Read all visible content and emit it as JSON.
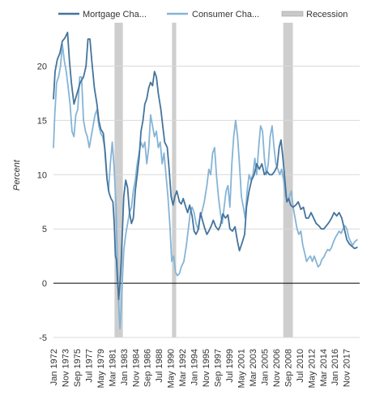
{
  "chart_data": {
    "type": "line",
    "ylabel": "Percent",
    "ylim": [
      -5,
      24
    ],
    "yticks": [
      -5,
      0,
      5,
      10,
      15,
      20
    ],
    "xlim": [
      1972.0,
      2019.9
    ],
    "xticks": [
      "Jan 1972",
      "Nov 1973",
      "Sep 1975",
      "Jul 1977",
      "May 1979",
      "Mar 1981",
      "Jan 1983",
      "Nov 1984",
      "Sep 1986",
      "Jul 1988",
      "May 1990",
      "Mar 1992",
      "Jan 1994",
      "Nov 1995",
      "Sep 1997",
      "Jul 1999",
      "May 2001",
      "Mar 2003",
      "Jan 2005",
      "Nov 2006",
      "Sep 2008",
      "Jul 2010",
      "May 2012",
      "Mar 2014",
      "Jan 2016",
      "Nov 2017"
    ],
    "grid": true,
    "legend": "top",
    "legend_items": [
      "Mortgage Cha...",
      "Consumer Cha...",
      "Recession"
    ],
    "recessions": [
      {
        "start": 1981.55,
        "end": 1982.85
      },
      {
        "start": 1990.55,
        "end": 1991.2
      },
      {
        "start": 2007.95,
        "end": 2009.45
      }
    ],
    "series": [
      {
        "name": "Mortgage Cha...",
        "color": "#44749d",
        "points": [
          [
            1972.0,
            17.0
          ],
          [
            1972.25,
            19.5
          ],
          [
            1972.6,
            20.6
          ],
          [
            1973.0,
            21.2
          ],
          [
            1973.4,
            22.3
          ],
          [
            1973.8,
            22.6
          ],
          [
            1974.2,
            23.1
          ],
          [
            1974.5,
            20.5
          ],
          [
            1974.8,
            18.5
          ],
          [
            1975.2,
            16.5
          ],
          [
            1975.7,
            17.5
          ],
          [
            1976.2,
            18.5
          ],
          [
            1976.7,
            19.0
          ],
          [
            1977.1,
            20.0
          ],
          [
            1977.4,
            22.5
          ],
          [
            1977.7,
            22.5
          ],
          [
            1978.0,
            20.5
          ],
          [
            1978.4,
            18.0
          ],
          [
            1978.8,
            16.5
          ],
          [
            1979.1,
            15.0
          ],
          [
            1979.4,
            14.2
          ],
          [
            1979.8,
            13.8
          ],
          [
            1980.1,
            12.0
          ],
          [
            1980.4,
            9.5
          ],
          [
            1980.7,
            8.3
          ],
          [
            1981.0,
            7.8
          ],
          [
            1981.3,
            7.5
          ],
          [
            1981.5,
            5.5
          ],
          [
            1981.7,
            2.5
          ],
          [
            1981.85,
            2.2
          ],
          [
            1982.05,
            0.0
          ],
          [
            1982.2,
            -1.5
          ],
          [
            1982.4,
            0.0
          ],
          [
            1982.6,
            2.0
          ],
          [
            1982.8,
            5.0
          ],
          [
            1983.0,
            8.0
          ],
          [
            1983.3,
            9.5
          ],
          [
            1983.6,
            8.8
          ],
          [
            1983.9,
            6.5
          ],
          [
            1984.2,
            5.5
          ],
          [
            1984.5,
            6.0
          ],
          [
            1984.8,
            8.5
          ],
          [
            1985.1,
            10.0
          ],
          [
            1985.4,
            11.5
          ],
          [
            1985.7,
            14.0
          ],
          [
            1986.0,
            15.0
          ],
          [
            1986.3,
            16.5
          ],
          [
            1986.6,
            17.0
          ],
          [
            1986.9,
            18.0
          ],
          [
            1987.2,
            18.5
          ],
          [
            1987.5,
            18.2
          ],
          [
            1987.8,
            19.5
          ],
          [
            1988.1,
            19.0
          ],
          [
            1988.4,
            17.5
          ],
          [
            1988.8,
            16.0
          ],
          [
            1989.1,
            14.5
          ],
          [
            1989.4,
            13.0
          ],
          [
            1989.8,
            12.5
          ],
          [
            1990.1,
            10.5
          ],
          [
            1990.4,
            8.0
          ],
          [
            1990.7,
            7.2
          ],
          [
            1991.0,
            8.0
          ],
          [
            1991.3,
            8.5
          ],
          [
            1991.7,
            7.5
          ],
          [
            1992.0,
            7.3
          ],
          [
            1992.3,
            7.8
          ],
          [
            1992.7,
            7.0
          ],
          [
            1993.0,
            6.5
          ],
          [
            1993.3,
            7.2
          ],
          [
            1993.7,
            6.2
          ],
          [
            1994.0,
            4.8
          ],
          [
            1994.3,
            4.5
          ],
          [
            1994.7,
            5.0
          ],
          [
            1995.0,
            6.5
          ],
          [
            1995.3,
            5.8
          ],
          [
            1995.7,
            5.0
          ],
          [
            1996.0,
            4.5
          ],
          [
            1996.3,
            4.8
          ],
          [
            1996.7,
            5.3
          ],
          [
            1997.0,
            5.8
          ],
          [
            1997.4,
            5.2
          ],
          [
            1997.8,
            4.9
          ],
          [
            1998.1,
            5.3
          ],
          [
            1998.5,
            6.4
          ],
          [
            1998.9,
            6.0
          ],
          [
            1999.3,
            6.3
          ],
          [
            1999.6,
            5.0
          ],
          [
            2000.0,
            4.8
          ],
          [
            2000.4,
            5.2
          ],
          [
            2000.8,
            3.8
          ],
          [
            2001.1,
            3.0
          ],
          [
            2001.5,
            3.7
          ],
          [
            2001.9,
            4.5
          ],
          [
            2002.2,
            7.0
          ],
          [
            2002.6,
            8.5
          ],
          [
            2003.0,
            9.5
          ],
          [
            2003.4,
            10.0
          ],
          [
            2003.8,
            11.0
          ],
          [
            2004.2,
            10.5
          ],
          [
            2004.6,
            11.0
          ],
          [
            2005.0,
            10.0
          ],
          [
            2005.4,
            10.3
          ],
          [
            2005.8,
            10.0
          ],
          [
            2006.2,
            10.0
          ],
          [
            2006.6,
            10.3
          ],
          [
            2007.0,
            10.8
          ],
          [
            2007.3,
            12.5
          ],
          [
            2007.6,
            13.2
          ],
          [
            2007.9,
            11.5
          ],
          [
            2008.2,
            9.5
          ],
          [
            2008.5,
            7.5
          ],
          [
            2008.8,
            7.8
          ],
          [
            2009.1,
            7.2
          ],
          [
            2009.5,
            7.0
          ],
          [
            2009.9,
            7.2
          ],
          [
            2010.3,
            7.5
          ],
          [
            2010.7,
            6.8
          ],
          [
            2011.1,
            7.0
          ],
          [
            2011.5,
            6.0
          ],
          [
            2011.9,
            6.0
          ],
          [
            2012.3,
            6.5
          ],
          [
            2012.7,
            6.0
          ],
          [
            2013.1,
            5.5
          ],
          [
            2013.5,
            5.3
          ],
          [
            2013.9,
            5.0
          ],
          [
            2014.3,
            5.0
          ],
          [
            2014.7,
            5.3
          ],
          [
            2015.1,
            5.6
          ],
          [
            2015.5,
            6.0
          ],
          [
            2015.9,
            6.5
          ],
          [
            2016.3,
            6.2
          ],
          [
            2016.7,
            6.5
          ],
          [
            2017.1,
            6.0
          ],
          [
            2017.5,
            5.0
          ],
          [
            2017.9,
            4.0
          ],
          [
            2018.3,
            3.6
          ],
          [
            2018.7,
            3.4
          ],
          [
            2019.1,
            3.2
          ],
          [
            2019.5,
            3.3
          ]
        ]
      },
      {
        "name": "Consumer Cha...",
        "color": "#86b4d6",
        "points": [
          [
            1972.0,
            12.5
          ],
          [
            1972.2,
            15.5
          ],
          [
            1972.5,
            18.5
          ],
          [
            1972.8,
            19.0
          ],
          [
            1973.1,
            20.0
          ],
          [
            1973.4,
            22.0
          ],
          [
            1973.7,
            20.5
          ],
          [
            1974.0,
            19.5
          ],
          [
            1974.3,
            18.0
          ],
          [
            1974.6,
            16.5
          ],
          [
            1974.9,
            14.0
          ],
          [
            1975.2,
            13.5
          ],
          [
            1975.5,
            15.5
          ],
          [
            1975.8,
            16.0
          ],
          [
            1976.1,
            19.0
          ],
          [
            1976.4,
            19.0
          ],
          [
            1976.7,
            15.0
          ],
          [
            1977.0,
            14.0
          ],
          [
            1977.3,
            13.5
          ],
          [
            1977.6,
            12.5
          ],
          [
            1977.9,
            13.5
          ],
          [
            1978.2,
            14.5
          ],
          [
            1978.5,
            15.5
          ],
          [
            1978.8,
            16.0
          ],
          [
            1979.1,
            14.5
          ],
          [
            1979.4,
            13.8
          ],
          [
            1979.7,
            13.5
          ],
          [
            1980.0,
            12.5
          ],
          [
            1980.3,
            10.0
          ],
          [
            1980.6,
            8.5
          ],
          [
            1980.9,
            11.0
          ],
          [
            1981.2,
            13.0
          ],
          [
            1981.5,
            10.5
          ],
          [
            1981.8,
            7.0
          ],
          [
            1982.0,
            2.0
          ],
          [
            1982.2,
            -2.0
          ],
          [
            1982.4,
            -4.2
          ],
          [
            1982.6,
            -2.5
          ],
          [
            1982.8,
            0.5
          ],
          [
            1983.0,
            3.0
          ],
          [
            1983.3,
            4.5
          ],
          [
            1983.6,
            5.5
          ],
          [
            1983.9,
            6.5
          ],
          [
            1984.2,
            7.0
          ],
          [
            1984.5,
            8.5
          ],
          [
            1984.8,
            9.5
          ],
          [
            1985.1,
            11.0
          ],
          [
            1985.4,
            12.0
          ],
          [
            1985.7,
            13.0
          ],
          [
            1986.0,
            12.5
          ],
          [
            1986.3,
            13.0
          ],
          [
            1986.6,
            11.0
          ],
          [
            1986.9,
            12.5
          ],
          [
            1987.2,
            15.5
          ],
          [
            1987.5,
            14.5
          ],
          [
            1987.8,
            13.5
          ],
          [
            1988.1,
            14.0
          ],
          [
            1988.4,
            12.5
          ],
          [
            1988.7,
            13.0
          ],
          [
            1989.0,
            11.0
          ],
          [
            1989.3,
            12.0
          ],
          [
            1989.6,
            10.0
          ],
          [
            1989.9,
            8.0
          ],
          [
            1990.2,
            5.5
          ],
          [
            1990.5,
            2.0
          ],
          [
            1990.8,
            2.5
          ],
          [
            1991.1,
            1.0
          ],
          [
            1991.4,
            0.7
          ],
          [
            1991.7,
            0.9
          ],
          [
            1992.0,
            1.5
          ],
          [
            1992.4,
            2.0
          ],
          [
            1992.8,
            3.5
          ],
          [
            1993.1,
            5.0
          ],
          [
            1993.4,
            6.5
          ],
          [
            1993.7,
            7.0
          ],
          [
            1994.0,
            6.5
          ],
          [
            1994.3,
            5.5
          ],
          [
            1994.6,
            5.0
          ],
          [
            1994.9,
            6.0
          ],
          [
            1995.2,
            6.5
          ],
          [
            1995.6,
            7.5
          ],
          [
            1996.0,
            9.0
          ],
          [
            1996.3,
            10.5
          ],
          [
            1996.6,
            10.0
          ],
          [
            1996.9,
            12.0
          ],
          [
            1997.2,
            12.5
          ],
          [
            1997.5,
            10.0
          ],
          [
            1997.8,
            8.0
          ],
          [
            1998.1,
            6.5
          ],
          [
            1998.4,
            5.5
          ],
          [
            1998.7,
            7.0
          ],
          [
            1999.0,
            8.5
          ],
          [
            1999.3,
            9.0
          ],
          [
            1999.6,
            7.0
          ],
          [
            1999.9,
            11.0
          ],
          [
            2000.2,
            13.5
          ],
          [
            2000.5,
            15.0
          ],
          [
            2000.8,
            13.5
          ],
          [
            2001.1,
            11.0
          ],
          [
            2001.4,
            8.0
          ],
          [
            2001.7,
            7.0
          ],
          [
            2002.0,
            6.0
          ],
          [
            2002.3,
            8.5
          ],
          [
            2002.6,
            10.0
          ],
          [
            2002.9,
            9.5
          ],
          [
            2003.2,
            10.0
          ],
          [
            2003.5,
            11.5
          ],
          [
            2003.8,
            10.0
          ],
          [
            2004.1,
            12.5
          ],
          [
            2004.4,
            14.5
          ],
          [
            2004.7,
            14.0
          ],
          [
            2005.0,
            11.5
          ],
          [
            2005.3,
            10.0
          ],
          [
            2005.6,
            11.0
          ],
          [
            2005.9,
            13.5
          ],
          [
            2006.2,
            14.5
          ],
          [
            2006.5,
            12.5
          ],
          [
            2006.8,
            11.0
          ],
          [
            2007.1,
            10.5
          ],
          [
            2007.4,
            10.0
          ],
          [
            2007.7,
            10.5
          ],
          [
            2008.0,
            9.5
          ],
          [
            2008.3,
            8.0
          ],
          [
            2008.6,
            7.5
          ],
          [
            2008.9,
            8.0
          ],
          [
            2009.2,
            8.5
          ],
          [
            2009.5,
            7.0
          ],
          [
            2009.8,
            6.0
          ],
          [
            2010.1,
            5.0
          ],
          [
            2010.4,
            4.5
          ],
          [
            2010.7,
            4.8
          ],
          [
            2011.0,
            3.5
          ],
          [
            2011.3,
            2.8
          ],
          [
            2011.6,
            2.0
          ],
          [
            2011.9,
            2.3
          ],
          [
            2012.2,
            2.5
          ],
          [
            2012.5,
            2.0
          ],
          [
            2012.8,
            2.5
          ],
          [
            2013.1,
            2.0
          ],
          [
            2013.4,
            1.5
          ],
          [
            2013.7,
            1.7
          ],
          [
            2014.0,
            2.2
          ],
          [
            2014.3,
            2.4
          ],
          [
            2014.6,
            2.8
          ],
          [
            2014.9,
            3.1
          ],
          [
            2015.2,
            3.0
          ],
          [
            2015.5,
            3.3
          ],
          [
            2015.8,
            3.8
          ],
          [
            2016.1,
            4.2
          ],
          [
            2016.4,
            4.5
          ],
          [
            2016.7,
            4.8
          ],
          [
            2017.0,
            4.6
          ],
          [
            2017.3,
            5.0
          ],
          [
            2017.6,
            5.3
          ],
          [
            2017.9,
            5.0
          ],
          [
            2018.2,
            4.2
          ],
          [
            2018.5,
            3.8
          ],
          [
            2018.8,
            3.5
          ],
          [
            2019.1,
            3.8
          ],
          [
            2019.5,
            4.0
          ]
        ]
      }
    ]
  }
}
